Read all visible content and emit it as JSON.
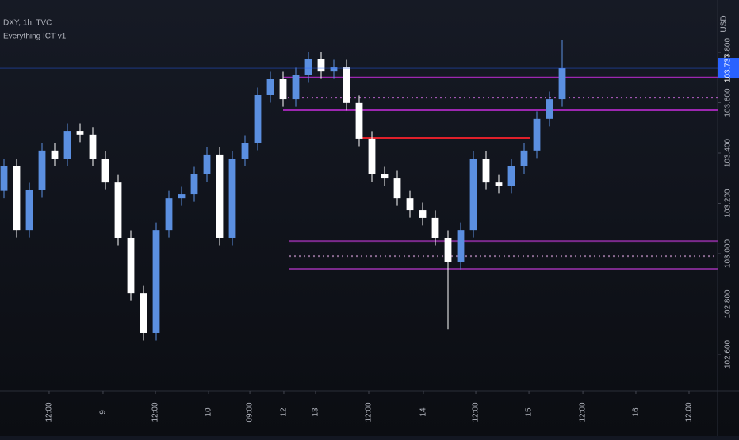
{
  "chart_data": {
    "type": "candlestick",
    "title": "DXY, 1h, TVC",
    "subtitle": "Everything ICT v1",
    "y_axis_label": "USD",
    "up_color": "#5b8fe0",
    "down_color": "#ffffff",
    "xlim": [
      -0.3125,
      56.25
    ],
    "ylim": [
      102.455,
      104.008
    ],
    "yticks": [
      {
        "value": 102.6,
        "label": "102.600"
      },
      {
        "value": 102.8,
        "label": "102.800"
      },
      {
        "value": 103.0,
        "label": "103.000"
      },
      {
        "value": 103.2,
        "label": "103.200"
      },
      {
        "value": 103.4,
        "label": "103.400"
      },
      {
        "value": 103.6,
        "label": "103.600"
      },
      {
        "value": 103.8,
        "label": "103.800"
      }
    ],
    "xticks": [
      {
        "value": 3.56,
        "label": "12:00"
      },
      {
        "value": 7.81,
        "label": "9"
      },
      {
        "value": 11.94,
        "label": "12:00"
      },
      {
        "value": 16.13,
        "label": "10"
      },
      {
        "value": 19.38,
        "label": "09:00"
      },
      {
        "value": 22.06,
        "label": "12"
      },
      {
        "value": 24.56,
        "label": "13"
      },
      {
        "value": 28.75,
        "label": "12:00"
      },
      {
        "value": 33.06,
        "label": "14"
      },
      {
        "value": 37.19,
        "label": "12:00"
      },
      {
        "value": 41.38,
        "label": "15"
      },
      {
        "value": 45.63,
        "label": "12:00"
      },
      {
        "value": 49.81,
        "label": "16"
      },
      {
        "value": 54,
        "label": "12:00"
      }
    ],
    "open": [
      103.25,
      103.347,
      103.094,
      103.252,
      103.41,
      103.378,
      103.488,
      103.473,
      103.378,
      103.283,
      103.063,
      102.842,
      102.685,
      103.094,
      103.22,
      103.236,
      103.315,
      103.394,
      103.063,
      103.378,
      103.441,
      103.63,
      103.693,
      103.614,
      103.709,
      103.772,
      103.724,
      103.74,
      103.599,
      103.457,
      103.315,
      103.299,
      103.22,
      103.173,
      103.142,
      103.063,
      102.968,
      103.094,
      103.378,
      103.283,
      103.268,
      103.347,
      103.41,
      103.536,
      103.614
    ],
    "high": [
      103.377,
      103.377,
      103.282,
      103.44,
      103.44,
      103.518,
      103.518,
      103.503,
      103.408,
      103.313,
      103.093,
      102.872,
      103.124,
      103.25,
      103.266,
      103.345,
      103.424,
      103.424,
      103.408,
      103.471,
      103.66,
      103.723,
      103.723,
      103.739,
      103.802,
      103.802,
      103.77,
      103.77,
      103.629,
      103.487,
      103.345,
      103.329,
      103.25,
      103.203,
      103.172,
      103.093,
      103.124,
      103.408,
      103.408,
      103.313,
      103.377,
      103.44,
      103.566,
      103.644,
      103.85
    ],
    "low": [
      103.22,
      103.064,
      103.064,
      103.222,
      103.348,
      103.348,
      103.443,
      103.348,
      103.253,
      103.033,
      102.812,
      102.655,
      102.655,
      103.064,
      103.19,
      103.206,
      103.285,
      103.033,
      103.033,
      103.348,
      103.411,
      103.6,
      103.584,
      103.584,
      103.679,
      103.694,
      103.694,
      103.569,
      103.427,
      103.285,
      103.269,
      103.19,
      103.143,
      103.112,
      103.033,
      102.7,
      102.938,
      103.064,
      103.253,
      103.238,
      103.238,
      103.317,
      103.38,
      103.506,
      103.584
    ],
    "close": [
      103.347,
      103.094,
      103.252,
      103.41,
      103.378,
      103.488,
      103.473,
      103.378,
      103.283,
      103.063,
      102.842,
      102.685,
      103.094,
      103.22,
      103.236,
      103.315,
      103.394,
      103.063,
      103.378,
      103.441,
      103.63,
      103.693,
      103.614,
      103.709,
      103.772,
      103.724,
      103.74,
      103.599,
      103.457,
      103.315,
      103.299,
      103.22,
      103.173,
      103.142,
      103.063,
      102.968,
      103.094,
      103.378,
      103.283,
      103.268,
      103.347,
      103.41,
      103.536,
      103.614,
      103.737
    ],
    "levels": [
      {
        "value": 103.7,
        "color": "#9c27b0",
        "style": "solid",
        "from": 22,
        "to": 56.25
      },
      {
        "value": 103.62,
        "color": "#b85fc8",
        "style": "dotted",
        "from": 22,
        "to": 56.25
      },
      {
        "value": 103.57,
        "color": "#9c27b0",
        "style": "solid",
        "from": 22,
        "to": 56.25
      },
      {
        "value": 103.46,
        "color": "#e0202a",
        "style": "solid",
        "from": 28.1,
        "to": 41.5
      },
      {
        "value": 103.05,
        "color": "#7b2a8c",
        "style": "solid",
        "from": 22.5,
        "to": 56.25
      },
      {
        "value": 102.99,
        "color": "#8a6a90",
        "style": "dotted",
        "from": 22.5,
        "to": 56.25
      },
      {
        "value": 102.94,
        "color": "#7b2a8c",
        "style": "solid",
        "from": 22.5,
        "to": 56.25
      }
    ]
  }
}
